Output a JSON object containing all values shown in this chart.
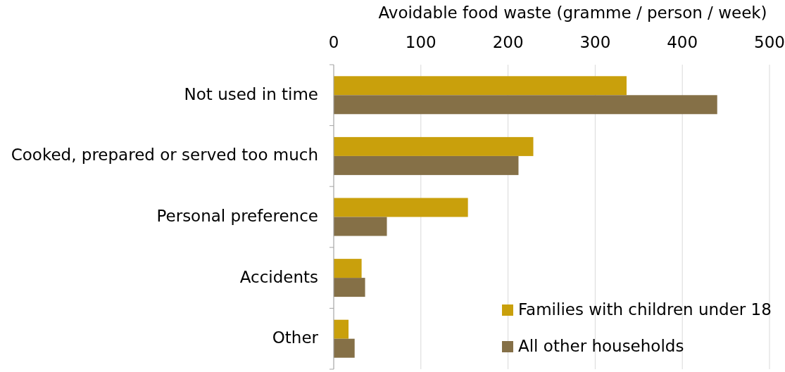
{
  "chart_data": {
    "type": "bar",
    "orientation": "horizontal",
    "xlabel": "Avoidable food waste (gramme / person / week)",
    "categories": [
      "Not used in time",
      "Cooked, prepared or served too much",
      "Personal preference",
      "Accidents",
      "Other"
    ],
    "series": [
      {
        "name": "Families with children under 18",
        "color": "#c9a00c",
        "values": [
          336,
          229,
          154,
          32,
          17
        ]
      },
      {
        "name": "All other households",
        "color": "#857047",
        "values": [
          440,
          212,
          61,
          36,
          24
        ]
      }
    ],
    "xlim": [
      0,
      500
    ],
    "xticks": [
      0,
      100,
      200,
      300,
      400,
      500
    ],
    "grid": "x",
    "legend": "bottom right"
  }
}
